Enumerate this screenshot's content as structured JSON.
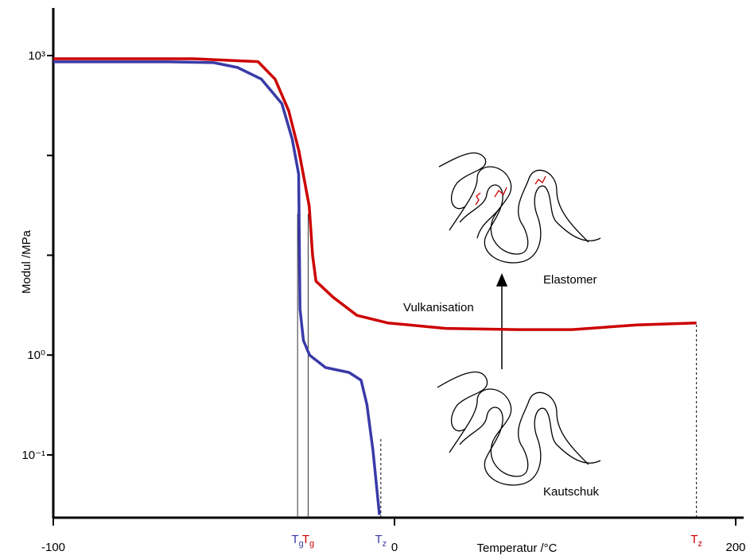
{
  "chart_data": {
    "type": "line",
    "xlabel": "Temperatur /°C",
    "ylabel": "Modul /MPa",
    "xlim": [
      -100,
      200
    ],
    "xticks": [
      -100,
      0,
      200
    ],
    "ylim": [
      0.0235,
      3000
    ],
    "log_y": true,
    "yticks": [
      {
        "value": 1000,
        "label": "10³"
      },
      {
        "value": 100,
        "label": null
      },
      {
        "value": 10,
        "label": null
      },
      {
        "value": 1,
        "label": "10⁰"
      },
      {
        "value": 0.1,
        "label": "10⁻¹"
      }
    ],
    "series": [
      {
        "name": "Elastomer",
        "color": "#cc0000",
        "x": [
          -100,
          -59,
          -40,
          -35,
          -31,
          -28,
          -25,
          -24,
          -23,
          -18,
          -11,
          -2,
          30,
          72,
          104,
          142,
          177
        ],
        "values": [
          930,
          930,
          870,
          580,
          280,
          110,
          31,
          10,
          5.5,
          3.8,
          2.5,
          2.1,
          1.85,
          1.8,
          1.8,
          2.0,
          2.1
        ]
      },
      {
        "name": "Kautschuk",
        "color": "#3a3aa8",
        "x": [
          -100,
          -66,
          -53,
          -46,
          -39,
          -33,
          -30,
          -28.1,
          -27.9,
          -27.7,
          -26.7,
          -24.9,
          -20.2,
          -13.3,
          -9.8,
          -8.1,
          -6.3,
          -4.4
        ],
        "values": [
          865,
          865,
          850,
          760,
          580,
          330,
          147,
          65,
          15,
          2.9,
          1.4,
          1.0,
          0.75,
          0.67,
          0.56,
          0.32,
          0.11,
          0.025
        ]
      }
    ],
    "markers": [
      {
        "label": "T",
        "sub": "g",
        "x": -28.4,
        "top": 26,
        "series": 1,
        "dashed": false
      },
      {
        "label": "T",
        "sub": "g",
        "x": -25.3,
        "top": 26,
        "series": 0,
        "dashed": false
      },
      {
        "label": "T",
        "sub": "z",
        "x": -4,
        "top": 0.15,
        "series": 1,
        "dashed": true
      },
      {
        "label": "T",
        "sub": "z",
        "x": 177,
        "top": 2.1,
        "series": 0,
        "dashed": true
      }
    ],
    "annotation": "Vulkanisation"
  }
}
